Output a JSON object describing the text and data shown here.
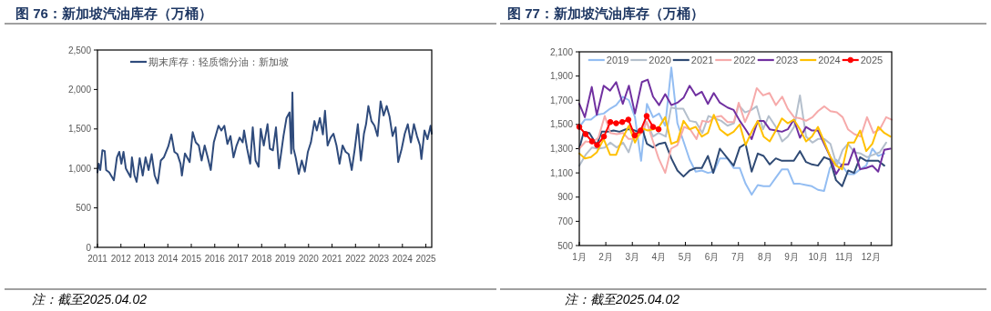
{
  "chart_data": [
    {
      "type": "line",
      "title": "图 76：新加坡汽油库存（万桶）",
      "annotations": [
        "注：截至2025.04.02"
      ],
      "legend": "top left",
      "xlim": [
        2011,
        2025.25
      ],
      "xticks": [
        2011,
        2012,
        2013,
        2014,
        2015,
        2016,
        2017,
        2018,
        2019,
        2020,
        2021,
        2022,
        2023,
        2024,
        2025
      ],
      "ylim": [
        0,
        2500
      ],
      "yticks": [
        0,
        500,
        {
          "value": 1000,
          "label": "1,000"
        },
        {
          "value": 1500,
          "label": "1,500"
        },
        {
          "value": 2000,
          "label": "2,000"
        },
        {
          "value": 2500,
          "label": "2,500"
        }
      ],
      "x": [
        2011.0,
        2011.05,
        2011.12,
        2011.21,
        2011.31,
        2011.37,
        2011.5,
        2011.7,
        2011.83,
        2011.93,
        2012.02,
        2012.11,
        2012.21,
        2012.41,
        2012.47,
        2012.58,
        2012.67,
        2012.8,
        2012.93,
        2013.05,
        2013.18,
        2013.31,
        2013.44,
        2013.57,
        2013.7,
        2013.83,
        2014.02,
        2014.15,
        2014.28,
        2014.41,
        2014.54,
        2014.6,
        2014.73,
        2014.93,
        2015.06,
        2015.19,
        2015.32,
        2015.44,
        2015.57,
        2015.7,
        2015.83,
        2015.96,
        2016.16,
        2016.28,
        2016.41,
        2016.54,
        2016.67,
        2016.8,
        2016.93,
        2017.06,
        2017.19,
        2017.25,
        2017.38,
        2017.51,
        2017.62,
        2017.74,
        2017.87,
        2017.96,
        2018.09,
        2018.25,
        2018.35,
        2018.48,
        2018.61,
        2018.74,
        2018.93,
        2019.06,
        2019.19,
        2019.26,
        2019.31,
        2019.36,
        2019.45,
        2019.58,
        2019.71,
        2019.84,
        2019.97,
        2020.1,
        2020.25,
        2020.35,
        2020.48,
        2020.61,
        2020.7,
        2020.81,
        2020.94,
        2021.06,
        2021.19,
        2021.32,
        2021.45,
        2021.58,
        2021.71,
        2021.84,
        2021.97,
        2022.1,
        2022.23,
        2022.36,
        2022.45,
        2022.55,
        2022.68,
        2022.81,
        2022.94,
        2023.07,
        2023.2,
        2023.33,
        2023.45,
        2023.58,
        2023.71,
        2023.82,
        2023.97,
        2024.1,
        2024.23,
        2024.36,
        2024.49,
        2024.62,
        2024.75,
        2024.81,
        2024.94,
        2025.07,
        2025.2,
        2025.25
      ],
      "series": [
        {
          "name": "期末库存：轻质馏分油：新加坡",
          "color": "#2f4b7c",
          "values": [
            950,
            1060,
            980,
            1230,
            1220,
            980,
            950,
            850,
            1140,
            1210,
            1060,
            1210,
            1000,
            890,
            1140,
            910,
            830,
            1130,
            910,
            1140,
            980,
            1180,
            910,
            810,
            1100,
            1140,
            1280,
            1430,
            1210,
            1180,
            1060,
            910,
            1190,
            1080,
            1460,
            1330,
            1290,
            1100,
            1290,
            1140,
            980,
            1330,
            1540,
            1480,
            1540,
            1310,
            1410,
            1140,
            1290,
            1390,
            1330,
            1480,
            1250,
            1060,
            1520,
            1100,
            1020,
            1500,
            1290,
            1560,
            1250,
            1230,
            1520,
            1000,
            1410,
            1640,
            1710,
            1190,
            1960,
            1250,
            1140,
            930,
            1100,
            960,
            1210,
            1330,
            1600,
            1480,
            1640,
            1430,
            1730,
            1290,
            1390,
            1440,
            1290,
            1060,
            1290,
            1210,
            1180,
            980,
            1250,
            1560,
            1100,
            1440,
            1560,
            1790,
            1600,
            1540,
            1410,
            1850,
            1670,
            1790,
            1660,
            1410,
            1520,
            1080,
            1250,
            1440,
            1560,
            1330,
            1560,
            1410,
            1290,
            1120,
            1480,
            1370,
            1540,
            1440
          ]
        }
      ]
    },
    {
      "type": "line",
      "title": "图 77：新加坡汽油库存（万桶）",
      "annotations": [
        "注：截至2025.04.02"
      ],
      "legend": "top",
      "xlim": [
        1,
        12.78
      ],
      "xticks": [
        {
          "value": 1,
          "label": "1月"
        },
        {
          "value": 2,
          "label": "2月"
        },
        {
          "value": 3,
          "label": "3月"
        },
        {
          "value": 4,
          "label": "4月"
        },
        {
          "value": 5,
          "label": "5月"
        },
        {
          "value": 6,
          "label": "6月"
        },
        {
          "value": 7,
          "label": "7月"
        },
        {
          "value": 8,
          "label": "8月"
        },
        {
          "value": 9,
          "label": "9月"
        },
        {
          "value": 10,
          "label": "10月"
        },
        {
          "value": 11,
          "label": "11月"
        },
        {
          "value": 12,
          "label": "12月"
        }
      ],
      "ylim": [
        500,
        2100
      ],
      "yticks": [
        500,
        700,
        900,
        {
          "value": 1100,
          "label": "1,100"
        },
        {
          "value": 1300,
          "label": "1,300"
        },
        {
          "value": 1500,
          "label": "1,500"
        },
        {
          "value": 1700,
          "label": "1,700"
        },
        {
          "value": 1900,
          "label": "1,900"
        },
        {
          "value": 2100,
          "label": "2,100"
        }
      ],
      "series": [
        {
          "name": "2019",
          "color": "#93bdf2",
          "x": [
            1.0,
            1.21,
            1.44,
            1.66,
            1.92,
            2.16,
            2.39,
            2.64,
            2.87,
            3.1,
            3.33,
            3.55,
            3.78,
            4.01,
            4.24,
            4.47,
            4.7,
            4.93,
            5.16,
            5.39,
            5.62,
            5.85,
            6.07,
            6.3,
            6.59,
            6.82,
            7.05,
            7.27,
            7.5,
            7.73,
            7.95,
            8.18,
            8.41,
            8.64,
            8.86,
            9.09,
            9.32,
            9.55,
            9.77,
            10.0,
            10.23,
            10.45,
            10.68,
            10.91,
            11.14,
            11.36,
            11.59,
            11.82,
            12.05,
            12.27,
            12.5
          ],
          "values": [
            1480,
            1540,
            1540,
            1580,
            1590,
            1630,
            1660,
            1730,
            1700,
            1560,
            1200,
            1670,
            1560,
            1590,
            1490,
            1970,
            1510,
            1360,
            1210,
            1110,
            1120,
            1100,
            1110,
            1220,
            1220,
            1140,
            1140,
            1010,
            920,
            1000,
            990,
            990,
            1060,
            1130,
            1130,
            1010,
            1010,
            1000,
            990,
            960,
            950,
            1140,
            1210,
            1160,
            1090,
            1090,
            1130,
            1160,
            1300,
            1240,
            1260
          ]
        },
        {
          "name": "2020",
          "color": "#b4bfcc",
          "x": [
            1.0,
            1.24,
            1.48,
            1.72,
            1.96,
            2.17,
            2.41,
            2.65,
            2.86,
            3.09,
            3.31,
            3.54,
            3.78,
            3.99,
            4.26,
            4.46,
            4.7,
            4.92,
            5.16,
            5.4,
            5.64,
            5.87,
            6.11,
            6.35,
            6.59,
            6.83,
            7.01,
            7.25,
            7.49,
            7.69,
            7.93,
            8.14,
            8.41,
            8.65,
            8.86,
            9.1,
            9.32,
            9.55,
            9.79,
            10.0,
            10.24,
            10.47,
            10.71,
            10.93,
            11.13,
            11.37,
            11.61,
            11.85,
            12.09,
            12.33,
            12.57
          ],
          "values": [
            1160,
            1250,
            1310,
            1300,
            1310,
            1350,
            1310,
            1350,
            1270,
            1430,
            1430,
            1520,
            1400,
            1430,
            1400,
            1640,
            1630,
            1630,
            1530,
            1520,
            1430,
            1570,
            1550,
            1530,
            1490,
            1510,
            1660,
            1600,
            1620,
            1650,
            1460,
            1570,
            1480,
            1360,
            1400,
            1480,
            1740,
            1400,
            1350,
            1380,
            1380,
            1340,
            1160,
            1290,
            1340,
            1270,
            1260,
            1230,
            1250,
            1270,
            1350
          ]
        },
        {
          "name": "2021",
          "color": "#2f4a74",
          "x": [
            1.0,
            1.17,
            1.38,
            1.66,
            1.84,
            2.07,
            2.29,
            2.52,
            2.75,
            2.98,
            3.21,
            3.38,
            3.55,
            3.78,
            4.01,
            4.24,
            4.47,
            4.7,
            4.93,
            5.16,
            5.39,
            5.62,
            5.85,
            6.05,
            6.3,
            6.59,
            6.82,
            7.05,
            7.27,
            7.5,
            7.73,
            7.95,
            8.18,
            8.41,
            8.64,
            8.86,
            9.09,
            9.32,
            9.55,
            9.77,
            10.0,
            10.23,
            10.45,
            10.68,
            10.91,
            11.14,
            11.36,
            11.59,
            11.82,
            12.05,
            12.27,
            12.5
          ],
          "values": [
            1300,
            1440,
            1430,
            1330,
            1440,
            1440,
            1450,
            1440,
            1460,
            1460,
            1440,
            1460,
            1340,
            1310,
            1340,
            1350,
            1220,
            1120,
            1070,
            1120,
            1140,
            1140,
            1240,
            1100,
            1300,
            1220,
            1160,
            1310,
            1340,
            1110,
            1260,
            1240,
            1170,
            1220,
            1200,
            1200,
            1200,
            1280,
            1190,
            1170,
            1160,
            1230,
            1210,
            1040,
            990,
            1120,
            1100,
            1230,
            1200,
            1200,
            1200,
            1160
          ]
        },
        {
          "name": "2022",
          "color": "#f6aaaa",
          "x": [
            1.0,
            1.24,
            1.48,
            1.72,
            1.96,
            2.17,
            2.41,
            2.65,
            2.86,
            3.09,
            3.31,
            3.54,
            3.78,
            3.99,
            4.24,
            4.46,
            4.7,
            4.95,
            5.18,
            5.42,
            5.64,
            5.87,
            6.11,
            6.35,
            6.59,
            6.83,
            7.01,
            7.25,
            7.49,
            7.69,
            7.93,
            8.17,
            8.41,
            8.65,
            8.86,
            9.1,
            9.34,
            9.55,
            9.79,
            10.0,
            10.24,
            10.47,
            10.71,
            10.93,
            11.13,
            11.37,
            11.61,
            11.85,
            12.09,
            12.33,
            12.57,
            12.78
          ],
          "values": [
            1300,
            1360,
            1350,
            1390,
            1570,
            1430,
            1420,
            1430,
            1380,
            1380,
            1420,
            1520,
            1360,
            1220,
            1100,
            1300,
            1330,
            1480,
            1460,
            1380,
            1530,
            1520,
            1560,
            1570,
            1520,
            1520,
            1680,
            1520,
            1640,
            1800,
            1740,
            1760,
            1660,
            1730,
            1630,
            1560,
            1550,
            1530,
            1560,
            1610,
            1650,
            1610,
            1600,
            1560,
            1460,
            1420,
            1400,
            1560,
            1430,
            1460,
            1560,
            1540
          ]
        },
        {
          "name": "2023",
          "color": "#7030a0",
          "x": [
            1.0,
            1.21,
            1.47,
            1.66,
            1.92,
            2.16,
            2.39,
            2.64,
            2.87,
            3.1,
            3.36,
            3.58,
            3.78,
            4.01,
            4.24,
            4.47,
            4.7,
            4.93,
            5.16,
            5.39,
            5.62,
            5.85,
            6.07,
            6.3,
            6.59,
            6.82,
            7.05,
            7.27,
            7.5,
            7.73,
            7.95,
            8.18,
            8.41,
            8.64,
            8.86,
            9.09,
            9.32,
            9.55,
            9.77,
            10.0,
            10.23,
            10.45,
            10.68,
            10.91,
            11.14,
            11.36,
            11.59,
            11.82,
            12.05,
            12.27,
            12.5,
            12.73
          ],
          "values": [
            1670,
            1560,
            1810,
            1580,
            1820,
            1780,
            1850,
            1670,
            1820,
            1590,
            1850,
            1870,
            1730,
            1660,
            1750,
            1660,
            1680,
            1720,
            1820,
            1740,
            1770,
            1670,
            1760,
            1680,
            1640,
            1620,
            1530,
            1460,
            1380,
            1530,
            1530,
            1460,
            1450,
            1440,
            1460,
            1540,
            1390,
            1480,
            1450,
            1450,
            1340,
            1240,
            1090,
            1170,
            1170,
            1300,
            1130,
            1140,
            1160,
            1110,
            1290,
            1300
          ]
        },
        {
          "name": "2024",
          "color": "#ffc000",
          "x": [
            1.0,
            1.21,
            1.44,
            1.66,
            1.92,
            2.16,
            2.39,
            2.64,
            2.87,
            3.1,
            3.36,
            3.58,
            3.78,
            4.01,
            4.24,
            4.47,
            4.7,
            4.93,
            5.16,
            5.39,
            5.62,
            5.85,
            6.07,
            6.3,
            6.59,
            6.82,
            7.05,
            7.27,
            7.5,
            7.73,
            7.95,
            8.18,
            8.41,
            8.64,
            8.86,
            9.09,
            9.32,
            9.55,
            9.77,
            10.0,
            10.23,
            10.45,
            10.68,
            10.91,
            11.14,
            11.36,
            11.59,
            11.82,
            12.05,
            12.27,
            12.5,
            12.73
          ],
          "values": [
            1260,
            1220,
            1230,
            1270,
            1380,
            1250,
            1250,
            1390,
            1490,
            1350,
            1470,
            1450,
            1460,
            1480,
            1560,
            1340,
            1360,
            1530,
            1460,
            1480,
            1400,
            1430,
            1580,
            1460,
            1410,
            1440,
            1500,
            1330,
            1440,
            1530,
            1400,
            1360,
            1450,
            1550,
            1510,
            1540,
            1460,
            1360,
            1400,
            1480,
            1360,
            1240,
            1160,
            1130,
            1350,
            1350,
            1450,
            1280,
            1340,
            1480,
            1430,
            1400
          ]
        },
        {
          "name": "2025",
          "color": "#ff0000",
          "marker": "circle",
          "x": [
            1.0,
            1.24,
            1.48,
            1.67,
            1.93,
            2.17,
            2.39,
            2.62,
            2.85,
            3.09,
            3.31,
            3.54,
            3.78,
            3.99
          ],
          "values": [
            1480,
            1420,
            1360,
            1330,
            1400,
            1520,
            1510,
            1520,
            1540,
            1410,
            1450,
            1570,
            1480,
            1460
          ]
        }
      ]
    }
  ]
}
